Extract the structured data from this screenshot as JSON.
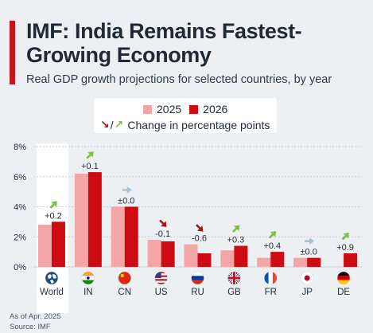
{
  "title": "IMF: India Remains Fastest-Growing Economy",
  "subtitle": "Real GDP growth projections for selected countries, by year",
  "legend": {
    "series_2025": "2025",
    "series_2026": "2026",
    "change_label": "Change in percentage points",
    "change_sep": "/"
  },
  "footer": {
    "note": "As of Apr. 2025",
    "source": "Source: IMF"
  },
  "colors": {
    "series_2025": "#f4a6a6",
    "series_2026": "#cc0b12",
    "arrow_up": "#7cc242",
    "arrow_down": "#a4161a",
    "arrow_flat": "#a9c3d1",
    "accent": "#c5161d"
  },
  "chart_data": {
    "type": "bar",
    "categories": [
      "World",
      "IN",
      "CN",
      "US",
      "RU",
      "GB",
      "FR",
      "JP",
      "DE"
    ],
    "flag_icons": [
      "globe-icon",
      "flag-in-icon",
      "flag-cn-icon",
      "flag-us-icon",
      "flag-ru-icon",
      "flag-gb-icon",
      "flag-fr-icon",
      "flag-jp-icon",
      "flag-de-icon"
    ],
    "series": [
      {
        "name": "2025",
        "values": [
          2.8,
          6.2,
          4.0,
          1.8,
          1.5,
          1.1,
          0.6,
          0.6,
          0.0
        ]
      },
      {
        "name": "2026",
        "values": [
          3.0,
          6.3,
          4.0,
          1.7,
          0.9,
          1.4,
          1.0,
          0.6,
          0.9
        ]
      }
    ],
    "change_labels": [
      "+0.2",
      "+0.1",
      "±0.0",
      "-0.1",
      "-0.6",
      "+0.3",
      "+0.4",
      "±0.0",
      "+0.9"
    ],
    "change_direction": [
      "up",
      "up",
      "flat",
      "down",
      "down",
      "up",
      "up",
      "flat",
      "up"
    ],
    "y_ticks": [
      "0%",
      "2%",
      "4%",
      "6%",
      "8%"
    ],
    "ylim": [
      0,
      8
    ],
    "grid": true,
    "legend_position": "top-center"
  }
}
